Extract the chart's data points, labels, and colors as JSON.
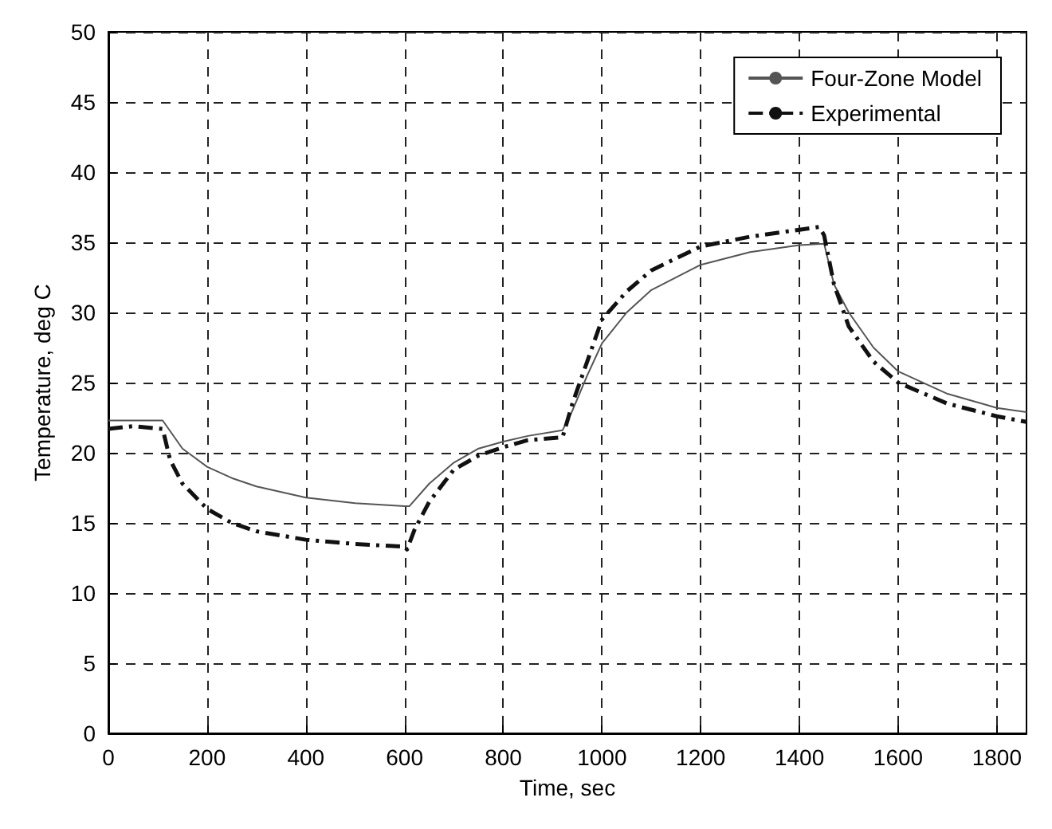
{
  "chart_data": {
    "type": "line",
    "xlabel": "Time, sec",
    "ylabel": "Temperature, deg C",
    "xlim": [
      0,
      1860
    ],
    "xticks": [
      0,
      200,
      400,
      600,
      800,
      1000,
      1200,
      1400,
      1600,
      1800
    ],
    "ylim": [
      0,
      50
    ],
    "yticks": [
      0,
      5,
      10,
      15,
      20,
      25,
      30,
      35,
      40,
      45,
      50
    ],
    "grid": true,
    "legend": "top right",
    "marker": "none",
    "series": [
      {
        "name": "Four-Zone Model",
        "color": "#555555",
        "line_style": "solid",
        "x": [
          0,
          110,
          150,
          200,
          250,
          300,
          400,
          500,
          600,
          610,
          650,
          700,
          750,
          800,
          850,
          920,
          940,
          970,
          1000,
          1050,
          1100,
          1200,
          1300,
          1400,
          1450,
          1470,
          1500,
          1550,
          1600,
          1700,
          1800,
          1860
        ],
        "values": [
          22.3,
          22.3,
          20.3,
          19,
          18.2,
          17.6,
          16.8,
          16.4,
          16.2,
          16.2,
          17.8,
          19.3,
          20.3,
          20.8,
          21.2,
          21.6,
          23,
          25.5,
          27.8,
          30,
          31.6,
          33.4,
          34.3,
          34.8,
          34.9,
          32,
          30,
          27.5,
          25.8,
          24.2,
          23.2,
          22.9
        ]
      },
      {
        "name": "Experimental",
        "color": "#111111",
        "line_style": "dashdot",
        "x": [
          0,
          50,
          110,
          125,
          150,
          200,
          250,
          300,
          400,
          500,
          600,
          605,
          620,
          650,
          700,
          750,
          800,
          850,
          920,
          940,
          970,
          1000,
          1050,
          1100,
          1200,
          1300,
          1400,
          1440,
          1450,
          1470,
          1500,
          1550,
          1600,
          1700,
          1800,
          1860
        ],
        "values": [
          21.7,
          21.9,
          21.7,
          19.5,
          17.8,
          16,
          15,
          14.4,
          13.8,
          13.5,
          13.3,
          13.1,
          14.5,
          16.5,
          18.8,
          19.8,
          20.4,
          20.9,
          21.1,
          23.5,
          26.5,
          29.5,
          31.5,
          33,
          34.7,
          35.4,
          35.9,
          36.1,
          35.5,
          32,
          29,
          26.5,
          25,
          23.5,
          22.6,
          22.2
        ]
      }
    ]
  }
}
